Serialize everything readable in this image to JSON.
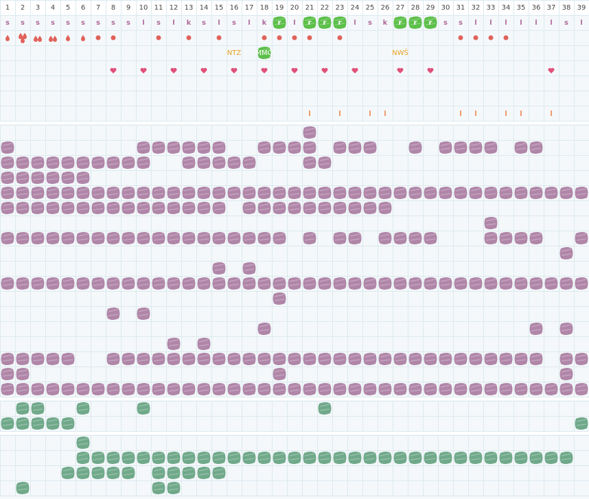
{
  "header": {
    "columns": [
      "1",
      "2",
      "3",
      "4",
      "5",
      "6",
      "7",
      "8",
      "9",
      "10",
      "11",
      "12",
      "13",
      "14",
      "15",
      "16",
      "17",
      "18",
      "19",
      "20",
      "21",
      "22",
      "23",
      "24",
      "25",
      "26",
      "27",
      "28",
      "29",
      "30",
      "31",
      "32",
      "33",
      "34",
      "35",
      "36",
      "37",
      "38",
      "39"
    ]
  },
  "letters": {
    "values": [
      "s",
      "s",
      "s",
      "s",
      "s",
      "s",
      "s",
      "s",
      "s",
      "l",
      "s",
      "l",
      "k",
      "s",
      "l",
      "s",
      "l",
      "k",
      "r",
      "l",
      "r",
      "r",
      "r",
      "l",
      "s",
      "k",
      "r",
      "r",
      "r",
      "s",
      "s",
      "l",
      "l",
      "l",
      "l",
      "l",
      "l",
      "s",
      "l"
    ],
    "highlight": [
      19,
      21,
      22,
      23,
      27,
      28,
      29
    ]
  },
  "markers": {
    "drop1": [
      1,
      5,
      6
    ],
    "drop2": [
      3,
      4
    ],
    "drop3": [
      2
    ],
    "dot": [
      7,
      8,
      11,
      13,
      15,
      18,
      19,
      20,
      21,
      23,
      31,
      32,
      33,
      34
    ]
  },
  "labels": [
    {
      "col": 16,
      "text": "NTZ"
    },
    {
      "col": 18,
      "text": "MMÓ",
      "highlight": true
    },
    {
      "col": 27,
      "text": "NWŠ"
    }
  ],
  "hearts": [
    8,
    10,
    12,
    14,
    16,
    18,
    20,
    22,
    24,
    27,
    29,
    37
  ],
  "ticks": [
    21,
    23,
    25,
    26,
    31,
    32,
    34,
    35,
    37
  ],
  "purple": [
    [
      21
    ],
    [
      1,
      10,
      11,
      12,
      13,
      14,
      15,
      18,
      19,
      20,
      21,
      23,
      24,
      25,
      28,
      30,
      31,
      32,
      33,
      35,
      36
    ],
    [
      1,
      2,
      3,
      4,
      5,
      6,
      7,
      8,
      9,
      10,
      13,
      14,
      15,
      16,
      17,
      21,
      22
    ],
    [
      1,
      2,
      3,
      4,
      5,
      6
    ],
    [
      1,
      2,
      3,
      4,
      5,
      6,
      7,
      8,
      9,
      10,
      11,
      12,
      13,
      14,
      15,
      16,
      17,
      18,
      19,
      20,
      21,
      22,
      23,
      24,
      25,
      26,
      27,
      28,
      29,
      30,
      31,
      32,
      33,
      34,
      35,
      36,
      37,
      38,
      39
    ],
    [
      1,
      2,
      3,
      4,
      5,
      6,
      7,
      8,
      9,
      10,
      11,
      12,
      13,
      14,
      15,
      17,
      18,
      19,
      20,
      21,
      22,
      23,
      24,
      25,
      26
    ],
    [
      33
    ],
    [
      1,
      2,
      3,
      4,
      5,
      6,
      7,
      8,
      9,
      10,
      11,
      12,
      13,
      14,
      15,
      16,
      17,
      18,
      19,
      21,
      23,
      24,
      26,
      27,
      28,
      29,
      33,
      34,
      35,
      36,
      39
    ],
    [
      38
    ],
    [
      15,
      17
    ],
    [
      1,
      2,
      3,
      4,
      5,
      6,
      7,
      8,
      9,
      10,
      11,
      12,
      13,
      14,
      15,
      16,
      17,
      18,
      19,
      20,
      21,
      22,
      23,
      24,
      25,
      26,
      27,
      28,
      29,
      30,
      31,
      32,
      33,
      34,
      35,
      36,
      37,
      38,
      39
    ],
    [
      19
    ],
    [
      8,
      10
    ],
    [
      18,
      36,
      38
    ],
    [
      12,
      14
    ],
    [
      1,
      2,
      3,
      4,
      5,
      8,
      9,
      10,
      11,
      12,
      13,
      14,
      15,
      16,
      17,
      18,
      19,
      20,
      21,
      22,
      23,
      24,
      25,
      26,
      27,
      28,
      29,
      30,
      31,
      32,
      33,
      34,
      35,
      36,
      38,
      39
    ],
    [
      1,
      2,
      19,
      38
    ],
    [
      1,
      2,
      3,
      4,
      5,
      6,
      7,
      8,
      9,
      10,
      11,
      12,
      13,
      14,
      15,
      16,
      17,
      18,
      19,
      20,
      21,
      22,
      23,
      24,
      25,
      26,
      27,
      28,
      29,
      30,
      31,
      32,
      33,
      34,
      35,
      36,
      37,
      38,
      39
    ]
  ],
  "green_a": [
    [
      2,
      3,
      6,
      10,
      22
    ],
    [
      1,
      2,
      3,
      4,
      5,
      39
    ]
  ],
  "green_b": [
    [
      6
    ],
    [
      6,
      7,
      8,
      9,
      10,
      11,
      12,
      13,
      14,
      15,
      16,
      17,
      18,
      19,
      20,
      21,
      22,
      23,
      24,
      25,
      26,
      27,
      28,
      29,
      30,
      31,
      32,
      33,
      34,
      35,
      36,
      37,
      38
    ],
    [
      5,
      6,
      7,
      8,
      9,
      11,
      12,
      13,
      14,
      15
    ],
    [
      2,
      11,
      12
    ]
  ]
}
